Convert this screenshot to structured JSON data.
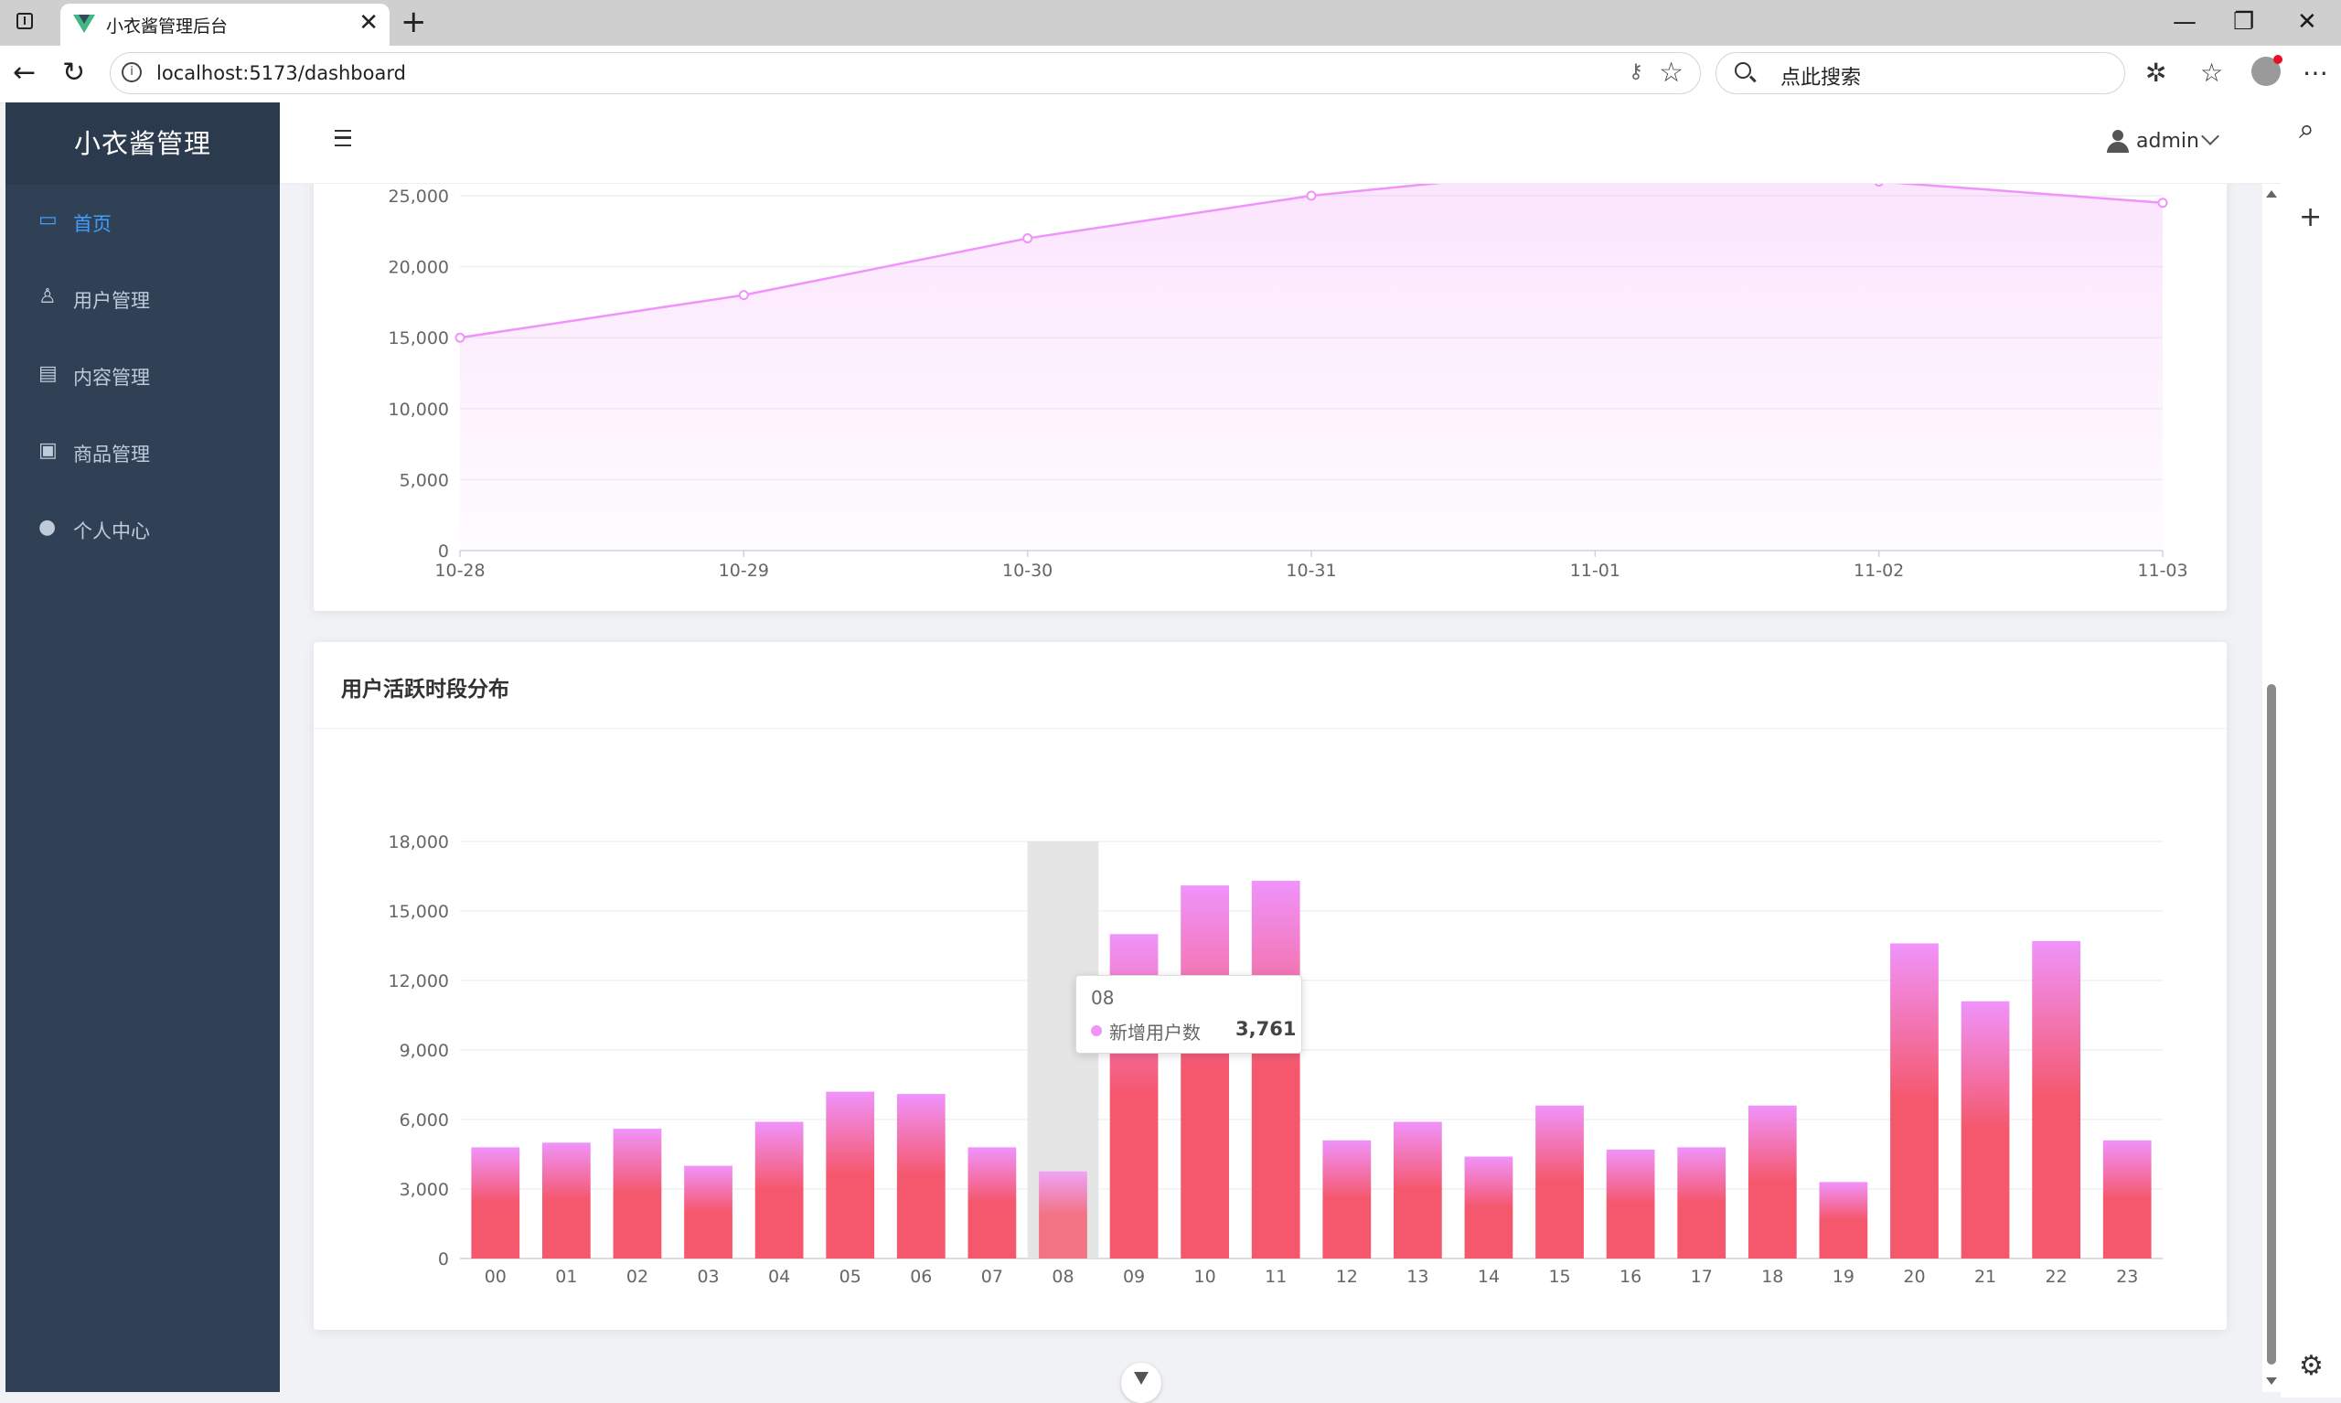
{
  "browser": {
    "tab_title": "小衣酱管理后台",
    "tab_close": "✕",
    "new_tab": "+",
    "url": "localhost:5173/dashboard",
    "search_placeholder": "点此搜索",
    "window_controls": {
      "minimize": "—",
      "restore": "❐",
      "close": "✕"
    }
  },
  "sidebar": {
    "brand": "小衣酱管理",
    "items": [
      {
        "label": "首页",
        "icon": "monitor-icon",
        "glyph": "▭"
      },
      {
        "label": "用户管理",
        "icon": "user-icon",
        "glyph": "♙"
      },
      {
        "label": "内容管理",
        "icon": "document-icon",
        "glyph": "▤"
      },
      {
        "label": "商品管理",
        "icon": "shopping-bag-icon",
        "glyph": "▣"
      },
      {
        "label": "个人中心",
        "icon": "person-icon",
        "glyph": "●"
      }
    ],
    "active_index": 0,
    "text_color": "#bfcbd9",
    "active_color": "#409eff",
    "bg_color": "#304156"
  },
  "header": {
    "username": "admin"
  },
  "chart_data": [
    {
      "type": "area",
      "title": "",
      "categories": [
        "10-28",
        "10-29",
        "10-30",
        "10-31",
        "11-01",
        "11-02",
        "11-03"
      ],
      "values": [
        15000,
        18000,
        22000,
        25000,
        27000,
        26000,
        24500
      ],
      "y_ticks": [
        "0",
        "5,000",
        "10,000",
        "15,000",
        "20,000",
        "25,000"
      ],
      "ylim": [
        0,
        30000
      ],
      "color": "#f093fb",
      "grid": true
    },
    {
      "type": "bar",
      "title": "用户活跃时段分布",
      "categories": [
        "00",
        "01",
        "02",
        "03",
        "04",
        "05",
        "06",
        "07",
        "08",
        "09",
        "10",
        "11",
        "12",
        "13",
        "14",
        "15",
        "16",
        "17",
        "18",
        "19",
        "20",
        "21",
        "22",
        "23"
      ],
      "series": [
        {
          "name": "新增用户数",
          "values": [
            4800,
            5000,
            5600,
            4000,
            5900,
            7200,
            7100,
            4800,
            3761,
            14000,
            16100,
            16300,
            5100,
            5900,
            4400,
            6600,
            4700,
            4800,
            6600,
            3300,
            13600,
            11100,
            13700,
            5100
          ]
        }
      ],
      "y_ticks": [
        "0",
        "3,000",
        "6,000",
        "9,000",
        "12,000",
        "15,000",
        "18,000"
      ],
      "ylim": [
        0,
        18000
      ],
      "gradient": [
        "#f093fb",
        "#f5576c"
      ],
      "highlight_index": 8,
      "grid": true
    }
  ],
  "tooltip": {
    "category": "08",
    "series_name": "新增用户数",
    "value": "3,761"
  }
}
